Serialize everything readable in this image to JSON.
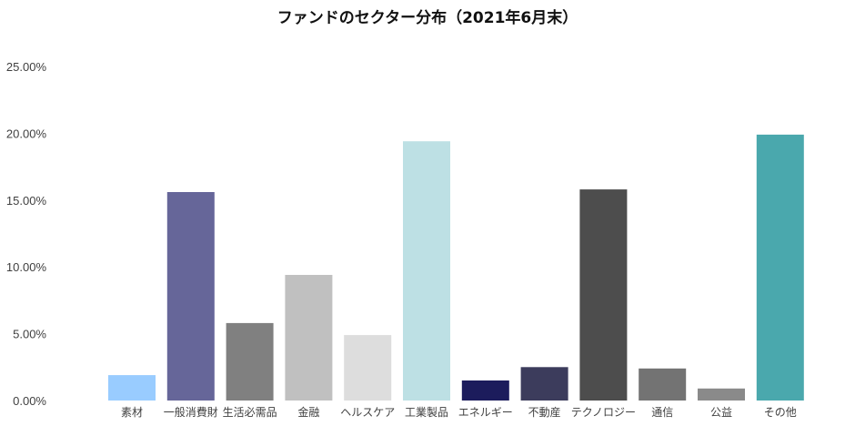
{
  "chart_data": {
    "type": "bar",
    "title": "ファンドのセクター分布（2021年6月末）",
    "xlabel": "",
    "ylabel": "",
    "ylim": [
      0,
      25
    ],
    "yticks": [
      0,
      5,
      10,
      15,
      20,
      25
    ],
    "ytick_labels": [
      "0.00%",
      "5.00%",
      "10.00%",
      "15.00%",
      "20.00%",
      "25.00%"
    ],
    "grid": false,
    "legend": "none",
    "categories": [
      "素材",
      "一般消費財",
      "生活必需品",
      "金融",
      "ヘルスケア",
      "工業製品",
      "エネルギー",
      "不動産",
      "テクノロジー",
      "通信",
      "公益",
      "その他"
    ],
    "values": [
      1.9,
      15.6,
      5.8,
      9.4,
      4.9,
      19.4,
      1.5,
      2.5,
      15.8,
      2.4,
      0.9,
      19.9
    ],
    "colors": [
      "#99ccff",
      "#666699",
      "#808080",
      "#c0c0c0",
      "#dddddd",
      "#bde0e4",
      "#1c1c5c",
      "#3c3c5c",
      "#4d4d4d",
      "#737373",
      "#8a8a8a",
      "#4aa8ad"
    ]
  }
}
